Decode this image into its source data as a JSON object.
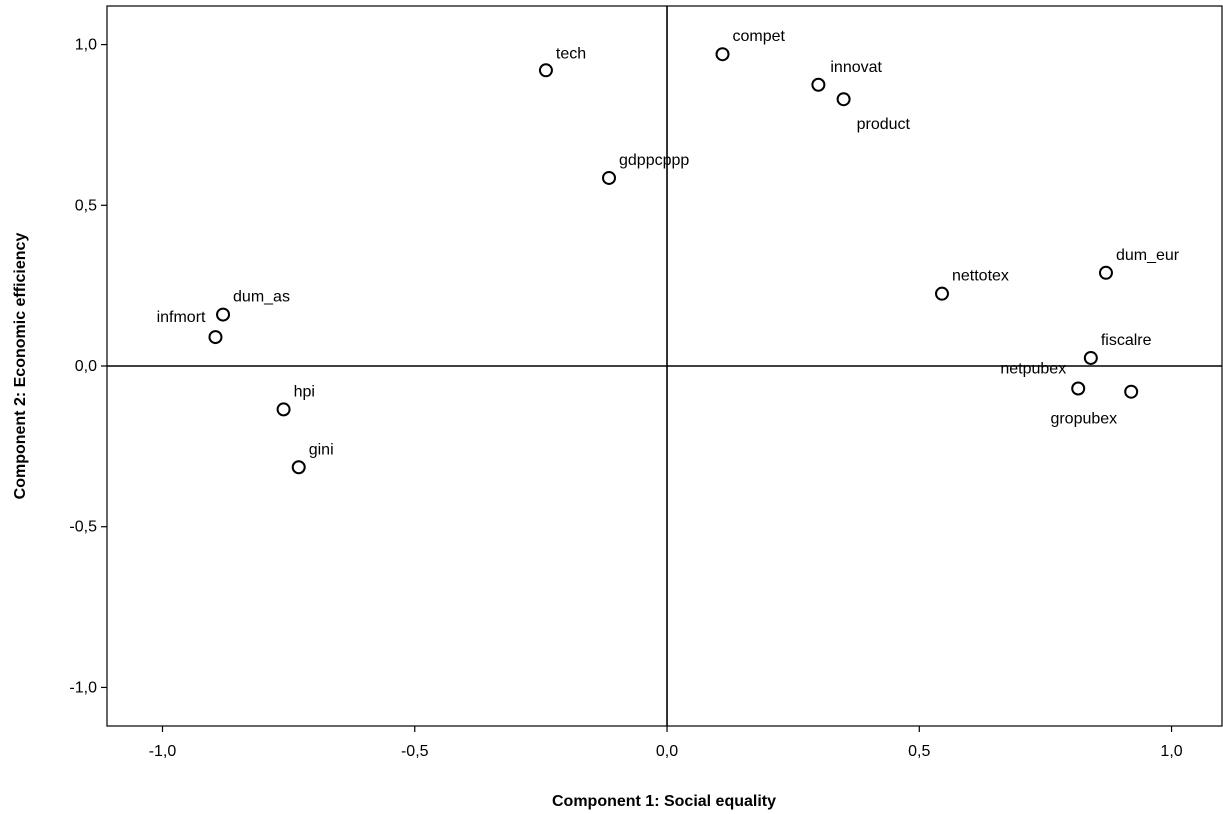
{
  "chart_data": {
    "type": "scatter",
    "title": "",
    "xlabel": "Component 1: Social equality",
    "ylabel": "Component 2: Economic efficiency",
    "xlim": [
      -1.11,
      1.1
    ],
    "ylim": [
      -1.12,
      1.12
    ],
    "xticks": [
      -1.0,
      -0.5,
      0.0,
      0.5,
      1.0
    ],
    "yticks": [
      -1.0,
      -0.5,
      0.0,
      0.5,
      1.0
    ],
    "xtick_labels": [
      "-1,0",
      "-0,5",
      "0,0",
      "0,5",
      "1,0"
    ],
    "ytick_labels": [
      "-1,0",
      "-0,5",
      "0,0",
      "0,5",
      "1,0"
    ],
    "reference_lines": {
      "x": 0,
      "y": 0
    },
    "grid": false,
    "marker": "open-circle",
    "points": [
      {
        "label": "tech",
        "x": -0.24,
        "y": 0.92
      },
      {
        "label": "compet",
        "x": 0.11,
        "y": 0.97
      },
      {
        "label": "innovat",
        "x": 0.3,
        "y": 0.875
      },
      {
        "label": "product",
        "x": 0.35,
        "y": 0.83
      },
      {
        "label": "gdppcppp",
        "x": -0.115,
        "y": 0.585
      },
      {
        "label": "dum_eur",
        "x": 0.87,
        "y": 0.29
      },
      {
        "label": "nettotex",
        "x": 0.545,
        "y": 0.225
      },
      {
        "label": "dum_as",
        "x": -0.88,
        "y": 0.16
      },
      {
        "label": "infmort",
        "x": -0.895,
        "y": 0.09
      },
      {
        "label": "fiscalre",
        "x": 0.84,
        "y": 0.025
      },
      {
        "label": "netpubex",
        "x": 0.815,
        "y": -0.07
      },
      {
        "label": "gropubex",
        "x": 0.92,
        "y": -0.08
      },
      {
        "label": "hpi",
        "x": -0.76,
        "y": -0.135
      },
      {
        "label": "gini",
        "x": -0.73,
        "y": -0.315
      }
    ]
  }
}
